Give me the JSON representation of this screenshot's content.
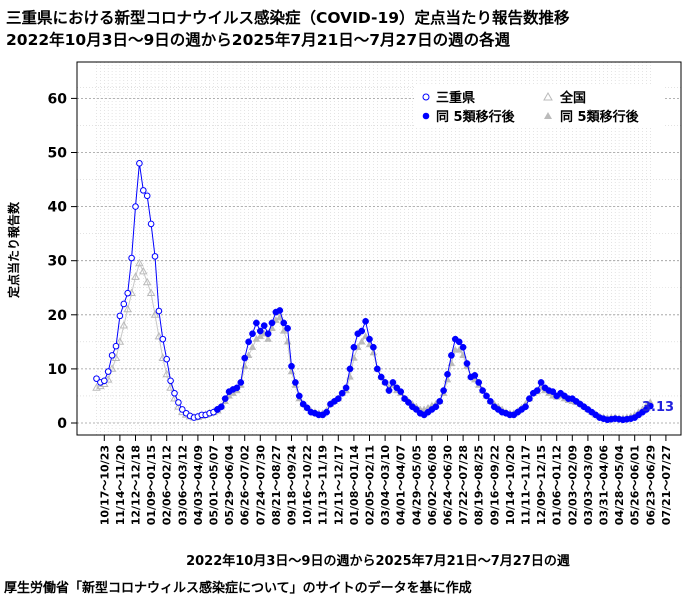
{
  "chart_data": {
    "type": "line",
    "title": "三重県における新型コロナウイルス感染症（COVID-19）定点当たり報告数推移",
    "subtitle": "2022年10月3日～9日の週から2025年7月21日～7月27日の週の各週",
    "xlabel": "2022年10月3日～9日の週から2025年7月21日～7月27日の週",
    "ylabel": "定点当たり報告数",
    "ylim": [
      0,
      65
    ],
    "yticks": [
      0,
      10,
      20,
      30,
      40,
      50,
      60
    ],
    "grid": true,
    "legend_position": "top-right",
    "annotation": "3.13",
    "x_tick_labels": [
      "10/17～10/23",
      "11/14～11/20",
      "12/12～12/18",
      "01/09～01/15",
      "02/06～02/12",
      "03/06～03/12",
      "04/03～04/09",
      "05/01～05/07",
      "05/29～06/04",
      "06/26～07/02",
      "07/24～07/30",
      "08/21～08/27",
      "09/18～09/24",
      "10/16～10/22",
      "11/13～11/19",
      "12/11～12/17",
      "01/08～01/14",
      "02/05～02/11",
      "03/04～03/10",
      "04/01～04/07",
      "04/29～05/05",
      "06/02～06/08",
      "06/24～06/30",
      "07/22～07/28",
      "08/19～08/25",
      "09/16～09/22",
      "10/14～10/20",
      "11/11～11/17",
      "12/09～12/15",
      "01/06～01/12",
      "02/03～02/09",
      "03/03～03/09",
      "03/31～04/06",
      "04/28～05/04",
      "05/26～06/01",
      "06/23～06/29",
      "07/21～07/27"
    ],
    "series": [
      {
        "name": "三重県",
        "color": "#0000ff",
        "marker": "open-circle",
        "x_index_start": 0,
        "values": [
          8.2,
          7.5,
          7.8,
          9.5,
          12.5,
          14.2,
          19.8,
          22.0,
          24.0,
          30.5,
          40.0,
          48.0,
          43.0,
          42.0,
          36.8,
          30.8,
          20.7,
          15.5,
          11.8,
          7.8,
          5.5,
          3.8,
          2.5,
          1.8,
          1.3,
          1.0,
          1.2,
          1.5,
          1.5,
          1.8,
          2.0,
          2.5
        ]
      },
      {
        "name": "同 5類移行後",
        "color": "#0000ff",
        "marker": "filled-circle",
        "x_index_start": 31,
        "values": [
          2.5,
          3.0,
          4.5,
          5.8,
          6.2,
          6.5,
          7.5,
          12.0,
          15.0,
          16.5,
          18.5,
          17.0,
          18.0,
          16.5,
          18.5,
          20.5,
          20.8,
          18.5,
          17.5,
          10.5,
          7.5,
          5.0,
          3.5,
          2.8,
          2.0,
          1.8,
          1.5,
          1.5,
          2.0,
          3.5,
          4.0,
          4.5,
          5.5,
          6.5,
          10.0,
          14.0,
          16.5,
          17.0,
          18.8,
          15.5,
          14.0,
          10.0,
          8.5,
          7.5,
          6.0,
          7.5,
          6.5,
          5.8,
          4.5,
          3.8,
          3.0,
          2.5,
          1.8,
          1.5,
          2.0,
          2.5,
          3.0,
          4.0,
          6.0,
          9.0,
          12.5,
          15.5,
          15.0,
          14.0,
          11.0,
          8.5,
          8.8,
          7.5,
          6.0,
          5.0,
          4.0,
          3.0,
          2.5,
          2.0,
          1.8,
          1.5,
          1.5,
          2.0,
          2.5,
          3.0,
          4.5,
          5.5,
          6.0,
          7.5,
          6.5,
          6.0,
          5.8,
          5.0,
          5.5,
          5.0,
          4.5,
          4.5,
          4.0,
          3.5,
          3.0,
          2.5,
          2.0,
          1.5,
          1.0,
          0.8,
          0.6,
          0.7,
          0.8,
          0.7,
          0.6,
          0.7,
          0.8,
          1.0,
          1.5,
          2.0,
          2.5,
          3.13
        ]
      },
      {
        "name": "全国",
        "color": "#bbbbbb",
        "marker": "open-triangle",
        "x_index_start": 0,
        "values": [
          6.5,
          6.8,
          7.2,
          8.0,
          10.0,
          12.0,
          15.0,
          18.0,
          21.0,
          24.0,
          27.0,
          29.5,
          28.0,
          26.0,
          24.0,
          20.0,
          16.0,
          12.0,
          9.0,
          6.5,
          4.5,
          3.0,
          2.0,
          1.5,
          1.2,
          1.0,
          1.1,
          1.3,
          1.5,
          1.8,
          2.0,
          2.3
        ]
      },
      {
        "name": "同 5類移行後",
        "color": "#bbbbbb",
        "marker": "filled-triangle",
        "x_index_start": 31,
        "values": [
          2.5,
          3.0,
          4.0,
          5.0,
          5.5,
          6.0,
          7.0,
          10.5,
          12.5,
          14.0,
          15.5,
          16.0,
          16.5,
          15.5,
          17.5,
          19.0,
          19.5,
          17.0,
          15.0,
          9.5,
          7.0,
          4.5,
          3.5,
          2.8,
          2.2,
          2.0,
          1.8,
          1.8,
          2.3,
          3.5,
          4.0,
          4.5,
          5.5,
          6.0,
          8.5,
          12.0,
          14.0,
          15.0,
          16.0,
          14.5,
          13.0,
          10.0,
          8.5,
          7.5,
          6.5,
          7.0,
          6.0,
          5.5,
          4.5,
          4.0,
          3.5,
          3.0,
          2.5,
          2.5,
          2.8,
          3.2,
          3.5,
          4.0,
          5.5,
          8.0,
          11.0,
          13.5,
          13.5,
          12.5,
          10.5,
          8.5,
          8.0,
          7.0,
          6.0,
          5.0,
          4.0,
          3.5,
          3.0,
          2.5,
          2.0,
          1.8,
          1.8,
          2.2,
          2.8,
          3.5,
          4.5,
          5.5,
          5.8,
          6.5,
          6.0,
          5.5,
          5.0,
          4.8,
          5.0,
          4.5,
          4.2,
          4.0,
          3.8,
          3.5,
          3.0,
          2.5,
          2.0,
          1.5,
          1.2,
          1.0,
          0.9,
          1.0,
          1.0,
          0.9,
          0.9,
          1.0,
          1.2,
          1.5,
          2.0,
          2.5,
          3.2,
          3.8
        ]
      }
    ]
  },
  "footer_source": "厚生労働省「新型コロナウィルス感染症について」のサイトのデータを基に作成"
}
